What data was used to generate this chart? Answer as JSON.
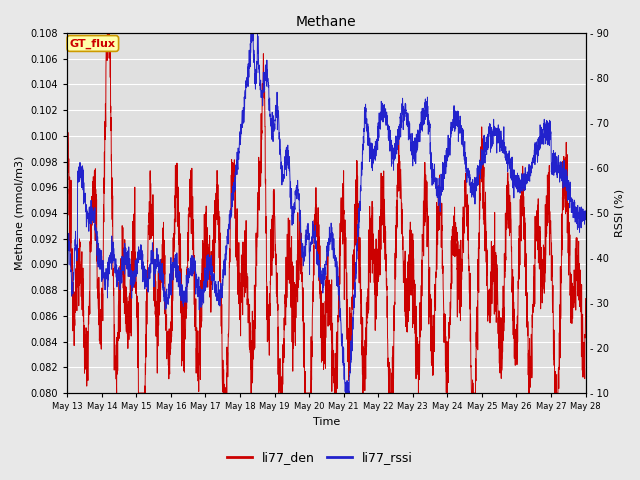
{
  "title": "Methane",
  "xlabel": "Time",
  "ylabel_left": "Methane (mmol/m3)",
  "ylabel_right": "RSSI (%)",
  "ylim_left": [
    0.08,
    0.108
  ],
  "ylim_right": [
    10,
    90
  ],
  "yticks_left": [
    0.08,
    0.082,
    0.084,
    0.086,
    0.088,
    0.09,
    0.092,
    0.094,
    0.096,
    0.098,
    0.1,
    0.102,
    0.104,
    0.106,
    0.108
  ],
  "yticks_right": [
    10,
    20,
    30,
    40,
    50,
    60,
    70,
    80,
    90
  ],
  "xtick_labels": [
    "May 13",
    "May 14",
    "May 15",
    "May 16",
    "May 17",
    "May 18",
    "May 19",
    "May 20",
    "May 21",
    "May 22",
    "May 23",
    "May 24",
    "May 25",
    "May 26",
    "May 27",
    "May 28"
  ],
  "color_red": "#cc0000",
  "color_blue": "#2222cc",
  "fig_bg": "#e8e8e8",
  "plot_bg": "#e0e0e0",
  "legend_label_red": "li77_den",
  "legend_label_blue": "li77_rssi",
  "annotation_text": "GT_flux",
  "annotation_bg": "#ffffaa",
  "annotation_border": "#cc9900",
  "title_fontsize": 10,
  "axis_fontsize": 8,
  "tick_fontsize": 7,
  "linewidth": 0.7
}
